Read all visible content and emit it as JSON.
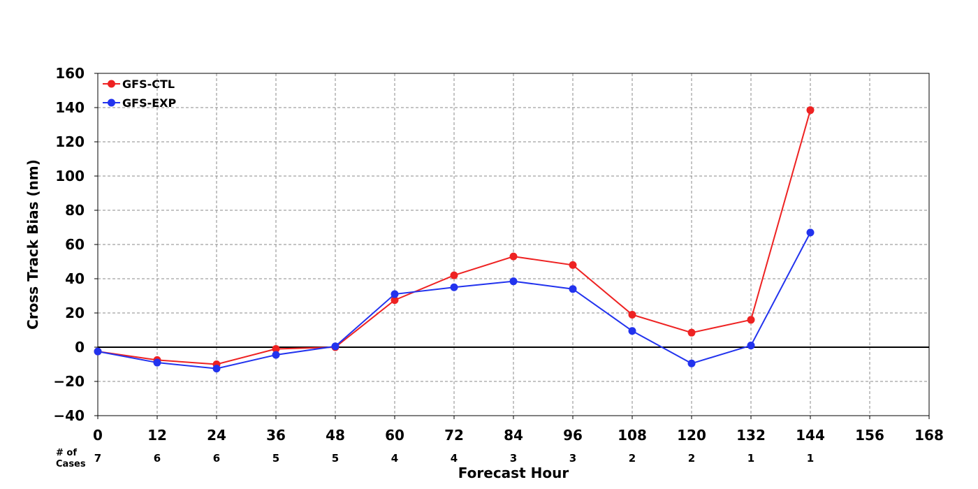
{
  "chart_data": {
    "type": "line",
    "xlabel": "Forecast Hour",
    "ylabel": "Cross Track Bias (nm)",
    "xlim": [
      0,
      168
    ],
    "ylim": [
      -40,
      160
    ],
    "x_ticks": [
      "0",
      "12",
      "24",
      "36",
      "48",
      "60",
      "72",
      "84",
      "96",
      "108",
      "120",
      "132",
      "144",
      "156",
      "168"
    ],
    "y_ticks": [
      "160",
      "140",
      "120",
      "100",
      "80",
      "60",
      "40",
      "20",
      "0",
      "−20",
      "−40"
    ],
    "grid": true,
    "zero_line": true,
    "legend_position": "top-left",
    "x": [
      0,
      12,
      24,
      36,
      48,
      60,
      72,
      84,
      96,
      108,
      120,
      132,
      144
    ],
    "series": [
      {
        "name": "GFS-CTL",
        "color": "#ee2222",
        "values": [
          -2.5,
          -7.5,
          -10,
          -1,
          0,
          27.5,
          42,
          53,
          48,
          19,
          8.5,
          16,
          138.5
        ]
      },
      {
        "name": "GFS-EXP",
        "color": "#2233ee",
        "values": [
          -2.5,
          -9,
          -12.5,
          -4.5,
          0.5,
          31,
          35,
          38.5,
          34,
          9.5,
          -9.5,
          1,
          67
        ]
      }
    ],
    "cases": {
      "label": "# of\nCases",
      "label_lines": [
        "# of",
        "Cases"
      ],
      "values": [
        "7",
        "6",
        "6",
        "5",
        "5",
        "4",
        "4",
        "3",
        "3",
        "2",
        "2",
        "1",
        "1"
      ]
    }
  }
}
